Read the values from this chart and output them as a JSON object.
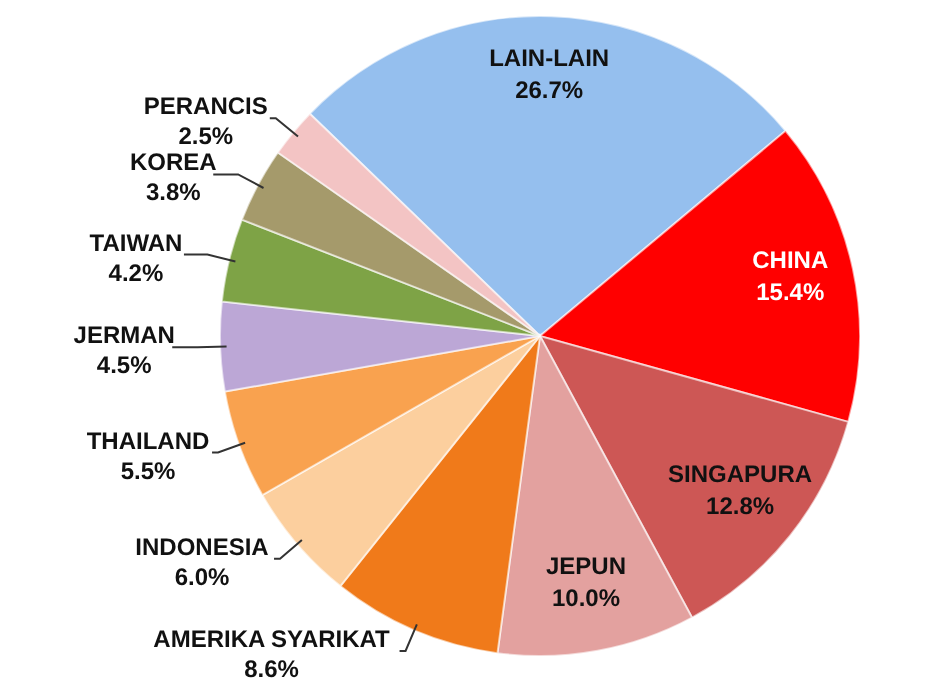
{
  "chart_data": {
    "type": "pie",
    "categories": [
      "LAIN-LAIN",
      "CHINA",
      "SINGAPURA",
      "JEPUN",
      "AMERIKA SYARIKAT",
      "INDONESIA",
      "THAILAND",
      "JERMAN",
      "TAIWAN",
      "KOREA",
      "PERANCIS"
    ],
    "values": [
      26.7,
      15.4,
      12.8,
      10.0,
      8.6,
      6.0,
      5.5,
      4.5,
      4.2,
      3.8,
      2.5
    ],
    "value_labels": [
      "26.7%",
      "15.4%",
      "12.8%",
      "10.0%",
      "8.6%",
      "6.0%",
      "5.5%",
      "4.5%",
      "4.2%",
      "3.8%",
      "2.5%"
    ],
    "colors": [
      "#95bfee",
      "#ff0000",
      "#cd5755",
      "#e3a19f",
      "#f07a1a",
      "#fccf9e",
      "#f9a24f",
      "#bca7d6",
      "#7ea346",
      "#a59a6b",
      "#f3c4c4"
    ]
  }
}
